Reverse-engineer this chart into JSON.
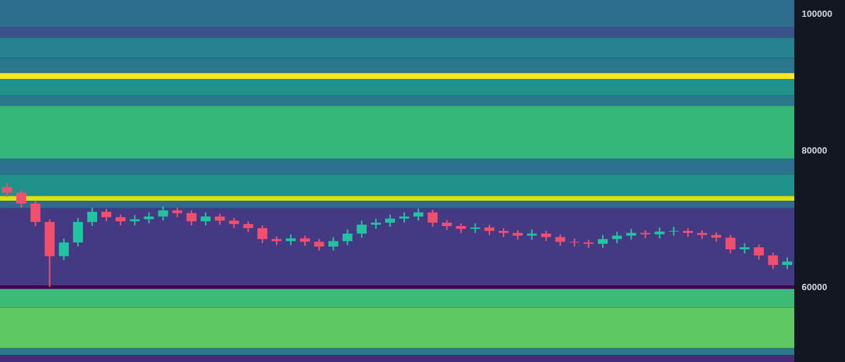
{
  "chart_data": {
    "type": "candlestick",
    "tick_labels": "y",
    "ylim": [
      49000,
      102000
    ],
    "yticks": [
      60000,
      80000,
      100000
    ],
    "categories": [
      null,
      null,
      null,
      null,
      null,
      null,
      null,
      null,
      null,
      null,
      null,
      null,
      null,
      null,
      null,
      null,
      null,
      null,
      null,
      null,
      null,
      null,
      null,
      null,
      null,
      null,
      null,
      null,
      null,
      null,
      null,
      null,
      null,
      null,
      null,
      null,
      null,
      null,
      null,
      null,
      null,
      null,
      null,
      null,
      null,
      null,
      null,
      null,
      null,
      null,
      null,
      null,
      null,
      null,
      null,
      null
    ],
    "ohlc": [
      [
        74600,
        75200,
        73200,
        73800
      ],
      [
        73800,
        74200,
        71600,
        72200
      ],
      [
        72200,
        72600,
        68900,
        69500
      ],
      [
        69500,
        69900,
        60000,
        64500
      ],
      [
        64500,
        67100,
        63900,
        66500
      ],
      [
        66500,
        70100,
        65900,
        69500
      ],
      [
        69500,
        71600,
        68900,
        71000
      ],
      [
        71000,
        71400,
        69600,
        70200
      ],
      [
        70200,
        70600,
        69000,
        69600
      ],
      [
        69600,
        70500,
        69000,
        69900
      ],
      [
        69900,
        70900,
        69300,
        70300
      ],
      [
        70300,
        71800,
        69700,
        71200
      ],
      [
        71200,
        71600,
        70200,
        70800
      ],
      [
        70800,
        71200,
        69000,
        69600
      ],
      [
        69600,
        70900,
        69000,
        70300
      ],
      [
        70300,
        70700,
        69100,
        69700
      ],
      [
        69700,
        70100,
        68600,
        69200
      ],
      [
        69200,
        69600,
        68000,
        68600
      ],
      [
        68600,
        69000,
        66400,
        67000
      ],
      [
        67000,
        67400,
        66100,
        66700
      ],
      [
        66700,
        67700,
        66100,
        67100
      ],
      [
        67100,
        67500,
        66000,
        66600
      ],
      [
        66600,
        67000,
        65300,
        65900
      ],
      [
        65900,
        67300,
        65300,
        66700
      ],
      [
        66700,
        68400,
        66100,
        67800
      ],
      [
        67800,
        69700,
        67200,
        69100
      ],
      [
        69100,
        70000,
        68500,
        69400
      ],
      [
        69400,
        70600,
        68800,
        70000
      ],
      [
        70000,
        70900,
        69400,
        70300
      ],
      [
        70300,
        71500,
        69700,
        70900
      ],
      [
        70900,
        71300,
        68800,
        69400
      ],
      [
        69400,
        69800,
        68300,
        68900
      ],
      [
        68900,
        69300,
        67900,
        68500
      ],
      [
        68500,
        69300,
        67900,
        68700
      ],
      [
        68700,
        69100,
        67600,
        68200
      ],
      [
        68200,
        68600,
        67300,
        67900
      ],
      [
        67900,
        68300,
        66900,
        67500
      ],
      [
        67500,
        68400,
        66900,
        67800
      ],
      [
        67800,
        68200,
        66700,
        67300
      ],
      [
        67300,
        67700,
        66000,
        66600
      ],
      [
        66600,
        67100,
        65900,
        66500
      ],
      [
        66500,
        66900,
        65700,
        66300
      ],
      [
        66300,
        67600,
        65700,
        67000
      ],
      [
        67000,
        68100,
        66400,
        67500
      ],
      [
        67500,
        68500,
        66900,
        67900
      ],
      [
        67900,
        68300,
        67100,
        67700
      ],
      [
        67700,
        68700,
        67100,
        68100
      ],
      [
        68100,
        68800,
        67500,
        68200
      ],
      [
        68200,
        68600,
        67300,
        67900
      ],
      [
        67900,
        68300,
        67000,
        67600
      ],
      [
        67600,
        68000,
        66600,
        67200
      ],
      [
        67200,
        67600,
        64900,
        65500
      ],
      [
        65500,
        66400,
        64900,
        65800
      ],
      [
        65800,
        66200,
        64000,
        64600
      ],
      [
        64600,
        65000,
        62600,
        63200
      ],
      [
        63200,
        64300,
        62600,
        63700
      ]
    ],
    "bands": [
      {
        "axis": "y",
        "from": 98000,
        "to": 102000,
        "color": "#2d6e8e"
      },
      {
        "axis": "y",
        "from": 96500,
        "to": 98000,
        "color": "#3b528b"
      },
      {
        "axis": "y",
        "from": 93500,
        "to": 96500,
        "color": "#26828e"
      },
      {
        "axis": "y",
        "from": 91300,
        "to": 93500,
        "color": "#2a788e"
      },
      {
        "axis": "y",
        "from": 90400,
        "to": 91300,
        "color": "#fde725"
      },
      {
        "axis": "y",
        "from": 88000,
        "to": 90400,
        "color": "#21918c"
      },
      {
        "axis": "y",
        "from": 86500,
        "to": 88000,
        "color": "#2a788e"
      },
      {
        "axis": "y",
        "from": 78800,
        "to": 86500,
        "color": "#35b779"
      },
      {
        "axis": "y",
        "from": 76500,
        "to": 78800,
        "color": "#2c728e"
      },
      {
        "axis": "y",
        "from": 73300,
        "to": 76500,
        "color": "#21918c"
      },
      {
        "axis": "y",
        "from": 72600,
        "to": 73300,
        "color": "#d8e219"
      },
      {
        "axis": "y",
        "from": 71500,
        "to": 72600,
        "color": "#31688e"
      },
      {
        "axis": "y",
        "from": 60200,
        "to": 71500,
        "color": "#443983"
      },
      {
        "axis": "y",
        "from": 59700,
        "to": 60200,
        "color": "#440154"
      },
      {
        "axis": "y",
        "from": 57000,
        "to": 59700,
        "color": "#3bbb75"
      },
      {
        "axis": "y",
        "from": 51000,
        "to": 57000,
        "color": "#5ec962"
      },
      {
        "axis": "y",
        "from": 50000,
        "to": 51000,
        "color": "#2a788e"
      },
      {
        "axis": "y",
        "from": 49000,
        "to": 50000,
        "color": "#482878"
      }
    ]
  }
}
